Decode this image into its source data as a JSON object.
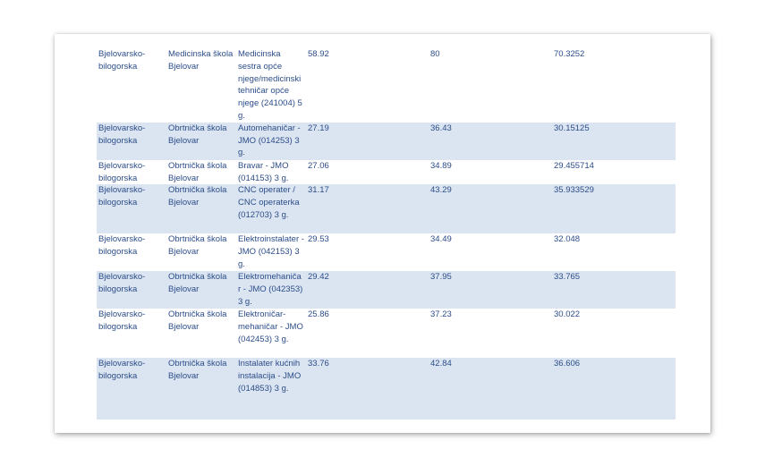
{
  "rows": [
    {
      "county": "Bjelovarsko-\nbilogorska",
      "school": "Medicinska škola\nBjelovar",
      "program": "Medicinska\nsestra opće\nnjege/medicinski\ntehničar opće\nnjege  (241004) 5\ng.",
      "col4": "58.92",
      "col5": "80",
      "col6": "70.3252",
      "shaded": false
    },
    {
      "county": "Bjelovarsko-\nbilogorska",
      "school": "Obrtnička škola\nBjelovar",
      "program": "Automehaničar -\nJMO (014253) 3\ng.",
      "col4": "27.19",
      "col5": "36.43",
      "col6": "30.15125",
      "shaded": true
    },
    {
      "county": "Bjelovarsko-\nbilogorska",
      "school": "Obrtnička škola\nBjelovar",
      "program": "Bravar - JMO\n(014153) 3 g.",
      "col4": "27.06",
      "col5": "34.89",
      "col6": "29.455714",
      "shaded": false
    },
    {
      "county": "Bjelovarsko-\nbilogorska",
      "school": "Obrtnička škola\nBjelovar",
      "program": "CNC operater /\nCNC operaterka\n(012703) 3 g.",
      "col4": "31.17",
      "col5": "43.29",
      "col6": "35.933529",
      "shaded": true
    },
    {
      "county": "Bjelovarsko-\nbilogorska",
      "school": "Obrtnička škola\nBjelovar",
      "program": "Elektroinstalater -\nJMO (042153) 3\ng.",
      "col4": "29.53",
      "col5": "34.49",
      "col6": "32.048",
      "shaded": false
    },
    {
      "county": "Bjelovarsko-\nbilogorska",
      "school": "Obrtnička škola\nBjelovar",
      "program": "Elektromehaniča\nr - JMO (042353)\n3 g.",
      "col4": "29.42",
      "col5": "37.95",
      "col6": "33.765",
      "shaded": true
    },
    {
      "county": "Bjelovarsko-\nbilogorska",
      "school": "Obrtnička škola\nBjelovar",
      "program": "Elektroničar-\nmehaničar - JMO\n(042453) 3 g.",
      "col4": "25.86",
      "col5": "37.23",
      "col6": "30.022",
      "shaded": false
    },
    {
      "county": "Bjelovarsko-\nbilogorska",
      "school": "Obrtnička škola\nBjelovar",
      "program": "Instalater kućnih\ninstalacija - JMO\n(014853) 3 g.",
      "col4": "33.76",
      "col5": "42.84",
      "col6": "36.606",
      "shaded": true
    }
  ]
}
